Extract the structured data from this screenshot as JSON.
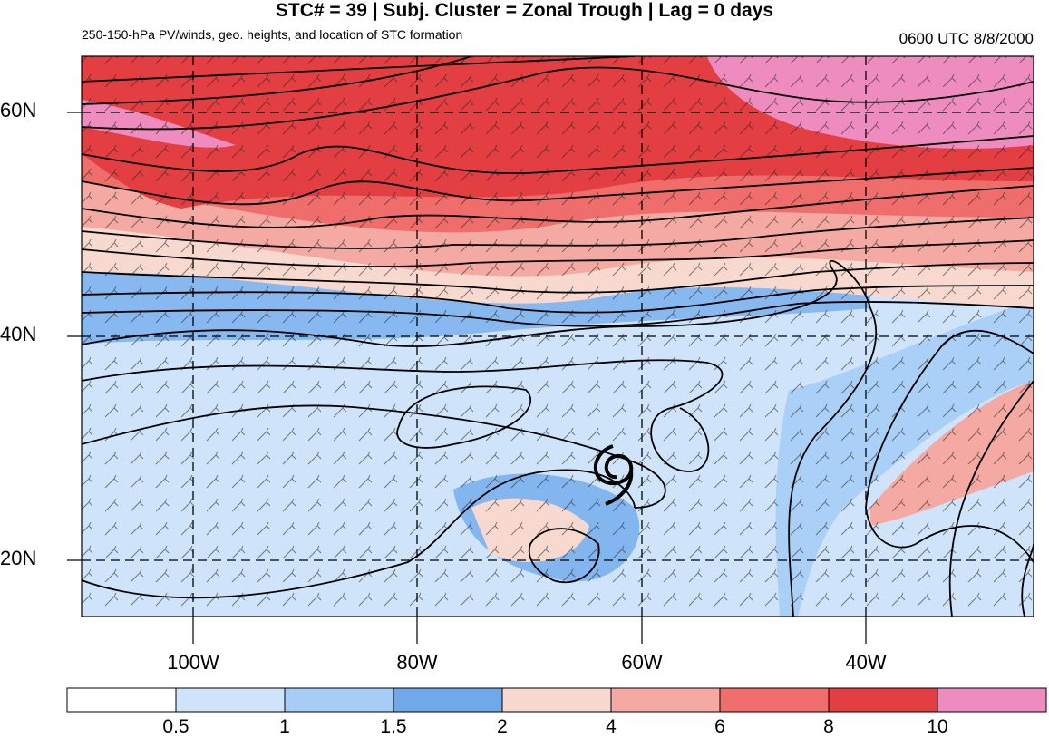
{
  "title": "STC# = 39 | Subj. Cluster = Zonal Trough | Lag = 0 days",
  "subtitle": "250-150-hPa PV/winds, geo. heights, and location of STC formation",
  "timestamp": "0600 UTC  8/8/2000",
  "map": {
    "lat_labels": [
      "60N",
      "40N",
      "20N"
    ],
    "lon_labels": [
      "100W",
      "80W",
      "60W",
      "40W"
    ],
    "stc_symbol": "tropical-cyclone-symbol",
    "colors": {
      "pv_low_1": "#cfe3fa",
      "pv_low_2": "#a5cdf6",
      "pv_low_3": "#6fa9ec",
      "pv_mid_1": "#f8d9cf",
      "pv_mid_2": "#f4aaa2",
      "pv_mid_3": "#ef6e6c",
      "pv_high_1": "#e33f43",
      "pv_high_2": "#ef8cbf",
      "contour": "#000000"
    }
  },
  "colorbar": {
    "labels": [
      "0.5",
      "1",
      "1.5",
      "2",
      "4",
      "6",
      "8",
      "10"
    ],
    "colors": [
      "#ffffff",
      "#cfe3fa",
      "#a5cdf6",
      "#6fa9ec",
      "#f8d9cf",
      "#f4aaa2",
      "#ef6e6c",
      "#e33f43",
      "#ef8cbf"
    ]
  }
}
